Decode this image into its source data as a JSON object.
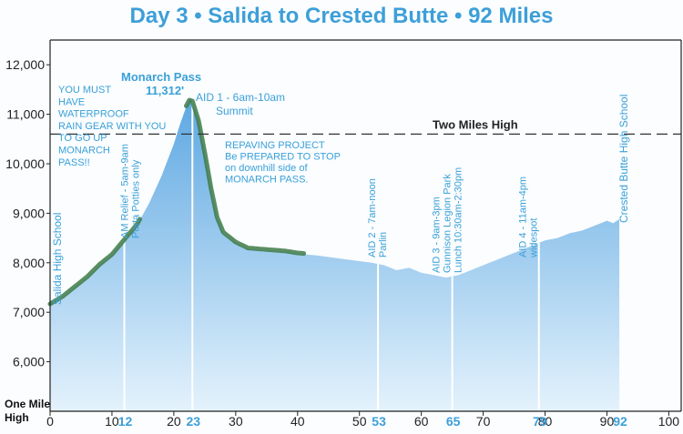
{
  "title": "Day 3 • Salida to Crested Butte • 92 Miles",
  "chart_data": {
    "type": "area",
    "xlabel": "",
    "ylabel": "",
    "xlim": [
      0,
      102
    ],
    "ylim": [
      5000,
      12500
    ],
    "yticks": [
      6000,
      7000,
      8000,
      9000,
      10000,
      11000,
      12000
    ],
    "ytick_labels": [
      "6,000",
      "7,000",
      "8,000",
      "9,000",
      "10,000",
      "11,000",
      "12,000"
    ],
    "xticks": [
      0,
      10,
      20,
      30,
      40,
      50,
      60,
      70,
      80,
      90,
      100
    ],
    "x_highlight": [
      12,
      23,
      53,
      65,
      79,
      92
    ],
    "one_mile_label": [
      "One Mile",
      "High"
    ],
    "two_miles_high": {
      "y": 10600,
      "label": "Two Miles High"
    },
    "elevation_profile": {
      "x": [
        0,
        2,
        4,
        6,
        8,
        10,
        12,
        14,
        16,
        18,
        20,
        21,
        22,
        22.7,
        23,
        23.5,
        24,
        25,
        26,
        27,
        28,
        30,
        32,
        34,
        36,
        38,
        40,
        43,
        46,
        49,
        52,
        54,
        56,
        58,
        60,
        62,
        64,
        66,
        68,
        70,
        72,
        74,
        76,
        78,
        80,
        82,
        84,
        86,
        88,
        90,
        91,
        92
      ],
      "y": [
        7150,
        7300,
        7500,
        7700,
        7950,
        8150,
        8450,
        8750,
        9200,
        9750,
        10400,
        10800,
        11150,
        11312,
        11250,
        11050,
        10850,
        10200,
        9500,
        8900,
        8600,
        8400,
        8280,
        8260,
        8240,
        8220,
        8180,
        8150,
        8100,
        8050,
        8000,
        7950,
        7850,
        7900,
        7800,
        7750,
        7700,
        7750,
        7850,
        7950,
        8050,
        8150,
        8250,
        8350,
        8450,
        8500,
        8600,
        8650,
        8750,
        8850,
        8800,
        8880
      ]
    },
    "stops": [
      {
        "x": 0,
        "label": "Salida High School"
      },
      {
        "x": 12,
        "label": "AM Relief - 5am-9am",
        "label2": "Porta Potties only"
      },
      {
        "x": 23,
        "label": "AID 1 - 6am-10am",
        "label2": "Summit"
      },
      {
        "x": 53,
        "label": "AID 2 - 7am-noon",
        "label2": "Parlin"
      },
      {
        "x": 65,
        "label": "AID 3 - 9am-3pm",
        "label2": "Gunnison Legion Park",
        "label3": "Lunch  10:30am-2:30pm"
      },
      {
        "x": 79,
        "label": "AID 4 - 11am-4pm",
        "label2": "widespot"
      },
      {
        "x": 92,
        "label": "Crested Butte High School"
      }
    ],
    "peak": {
      "name": "Monarch Pass",
      "elevation": "11,312'"
    },
    "notes": {
      "rain_gear": [
        "YOU MUST",
        "HAVE",
        "WATERPROOF",
        "RAIN GEAR WITH YOU",
        "TO GO UP",
        "MONARCH",
        "PASS!!"
      ],
      "repaving": [
        "REPAVING PROJECT",
        "Be PREPARED TO STOP",
        "on downhill side of",
        "MONARCH PASS."
      ]
    },
    "highlight_segments": [
      [
        0,
        14.5
      ],
      [
        22,
        41
      ]
    ],
    "colors": {
      "fill_top": "#5ea8e2",
      "fill_bottom": "#e4f2fc",
      "title": "#3d9fd8",
      "highlight": "#3d7a47",
      "axis": "#222222"
    }
  }
}
